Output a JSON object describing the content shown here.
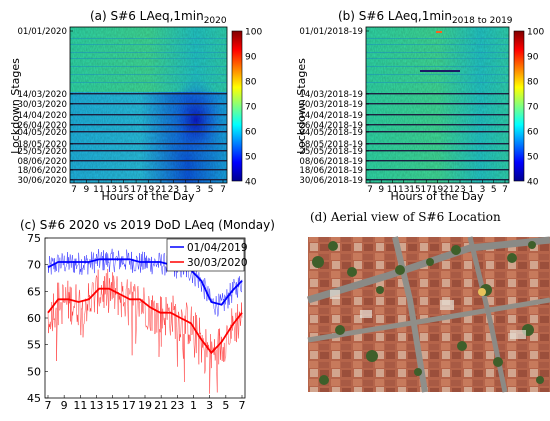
{
  "chart_data": [
    {
      "id": "a",
      "type": "heatmap",
      "title_main": "(a) S#6 LAeq,1min",
      "title_sub": "2020",
      "xlabel": "Hours of the Day",
      "ylabel": "Lockdown Stages",
      "xticks": [
        "7",
        "9",
        "11",
        "13",
        "15",
        "17",
        "19",
        "21",
        "23",
        "1",
        "3",
        "5",
        "7"
      ],
      "yticks": [
        "01/01/2020",
        "14/03/2020",
        "30/03/2020",
        "14/04/2020",
        "26/04/2020",
        "04/05/2020",
        "18/05/2020",
        "25/05/2020",
        "08/06/2020",
        "18/06/2020",
        "30/06/2020"
      ],
      "colorbar": {
        "min": 40,
        "max": 100,
        "ticks": [
          40,
          50,
          60,
          70,
          80,
          90,
          100
        ]
      }
    },
    {
      "id": "b",
      "type": "heatmap",
      "title_main": "(b) S#6 LAeq,1min",
      "title_sub": "2018 to 2019",
      "xlabel": "Hours of the Day",
      "ylabel": "Lockdown Stages",
      "xticks": [
        "7",
        "9",
        "11",
        "13",
        "15",
        "17",
        "19",
        "21",
        "23",
        "1",
        "3",
        "5",
        "7"
      ],
      "yticks": [
        "01/01/2018-19",
        "14/03/2018-19",
        "30/03/2018-19",
        "14/04/2018-19",
        "26/04/2018-19",
        "04/05/2018-19",
        "18/05/2018-19",
        "25/05/2018-19",
        "08/06/2018-19",
        "18/06/2018-19",
        "30/06/2018-19"
      ],
      "colorbar": {
        "min": 40,
        "max": 100,
        "ticks": [
          40,
          50,
          60,
          70,
          80,
          90,
          100
        ]
      }
    },
    {
      "id": "c",
      "type": "line",
      "title": "(c) S#6 2020 vs 2019 DoD LAeq (Monday)",
      "xticks": [
        "7",
        "9",
        "11",
        "13",
        "15",
        "17",
        "19",
        "21",
        "23",
        "1",
        "3",
        "5",
        "7"
      ],
      "yticks": [
        45,
        50,
        55,
        60,
        65,
        70,
        75
      ],
      "ylim": [
        45,
        75
      ],
      "legend_position": "top-right",
      "series": [
        {
          "name": "01/04/2019",
          "color": "#0000ff",
          "values": [
            69.5,
            70.5,
            70.5,
            70.5,
            70.5,
            71,
            71,
            71,
            71,
            70.5,
            70.5,
            70.5,
            70,
            69.5,
            69,
            67,
            63,
            62.5,
            65,
            67
          ]
        },
        {
          "name": "30/03/2020",
          "color": "#ff0000",
          "values": [
            61,
            63.5,
            63.5,
            63,
            63.5,
            65.5,
            65.5,
            64.5,
            63.5,
            63.5,
            62,
            61,
            61,
            60,
            59,
            56,
            53.5,
            55.5,
            58.5,
            61
          ]
        }
      ]
    }
  ],
  "panel_d": {
    "caption": "(d) Aerial view of S#6 Location"
  }
}
